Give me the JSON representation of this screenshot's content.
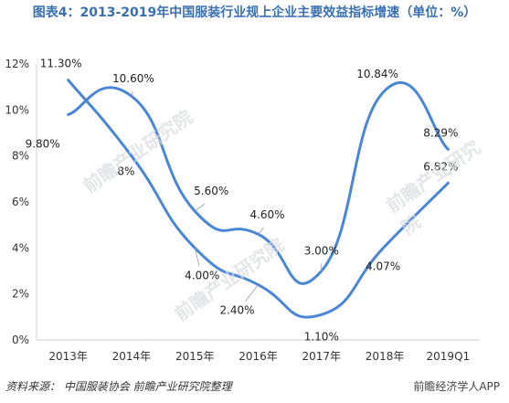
{
  "chart_data": {
    "type": "line",
    "title": "图表4：2013-2019年中国服装行业规上企业主要效益指标增速（单位：%）",
    "categories": [
      "2013年",
      "2014年",
      "2015年",
      "2016年",
      "2017年",
      "2018年",
      "2019Q1"
    ],
    "ylim": [
      0,
      12
    ],
    "yticks": [
      "0%",
      "2%",
      "4%",
      "6%",
      "8%",
      "10%",
      "12%"
    ],
    "grid": false,
    "series": [
      {
        "values": [
          9.8,
          10.6,
          5.6,
          4.6,
          3.0,
          10.84,
          8.29
        ],
        "labels": [
          "9.80%",
          "10.60%",
          "5.60%",
          "4.60%",
          "3.00%",
          "10.84%",
          "8.29%"
        ]
      },
      {
        "values": [
          11.3,
          8.0,
          4.0,
          2.4,
          1.1,
          4.07,
          6.82
        ],
        "labels": [
          "11.30%",
          "8%",
          "4.00%",
          "2.40%",
          "1.10%",
          "4.07%",
          "6.82%"
        ]
      }
    ],
    "line_color": "#4a86d8"
  },
  "footer": {
    "source": "资料来源：  中国服装协会  前瞻产业研究院整理",
    "brand": "前瞻经济学人APP"
  },
  "watermark": "前瞻产业研究院"
}
